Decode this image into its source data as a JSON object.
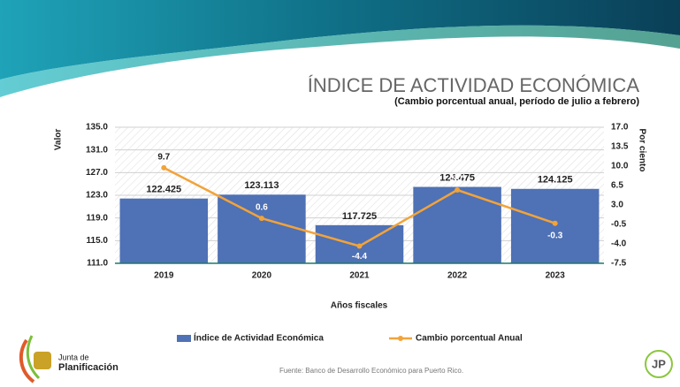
{
  "chart_data": {
    "type": "bar-line",
    "title": "ÍNDICE DE ACTIVIDAD ECONÓMICA",
    "subtitle": "(Cambio porcentual anual, período de julio a febrero)",
    "y_label": "Valor",
    "y2_label": "Por ciento",
    "x_label": "Años fiscales",
    "categories": [
      "2019",
      "2020",
      "2021",
      "2022",
      "2023"
    ],
    "series": [
      {
        "name": "Índice de Actividad Económica",
        "type": "bar",
        "color": "#4f71b5",
        "values": [
          122.425,
          123.113,
          117.725,
          124.475,
          124.125
        ]
      },
      {
        "name": "Cambio porcentual Anual",
        "type": "line",
        "color": "#f2a33a",
        "axis": "y2",
        "values": [
          9.7,
          0.6,
          -4.4,
          5.7,
          -0.3
        ]
      }
    ],
    "ylim": [
      111,
      135
    ],
    "yticks": [
      {
        "value": 111,
        "label": "111.0"
      },
      {
        "value": 115,
        "label": "115.0"
      },
      {
        "value": 119,
        "label": "119.0"
      },
      {
        "value": 123,
        "label": "123.0"
      },
      {
        "value": 127,
        "label": "127.0"
      },
      {
        "value": 131,
        "label": "131.0"
      },
      {
        "value": 135,
        "label": "135.0"
      }
    ],
    "y2lim": [
      -7.5,
      17
    ],
    "y2ticks": [
      -7.5,
      {
        "value": -4,
        "label": "-4.0"
      },
      -0.5,
      {
        "value": 3,
        "label": "3.0"
      },
      6.5,
      {
        "value": 10,
        "label": "10.0"
      },
      13.5,
      {
        "value": 17,
        "label": "17.0"
      }
    ],
    "grid": true,
    "legend": "bottom",
    "source": "Fuente: Banco de Desarrollo Económico para Puerto Rico.",
    "logo": [
      "Junta de",
      "Planificación"
    ],
    "badge": "JP"
  }
}
